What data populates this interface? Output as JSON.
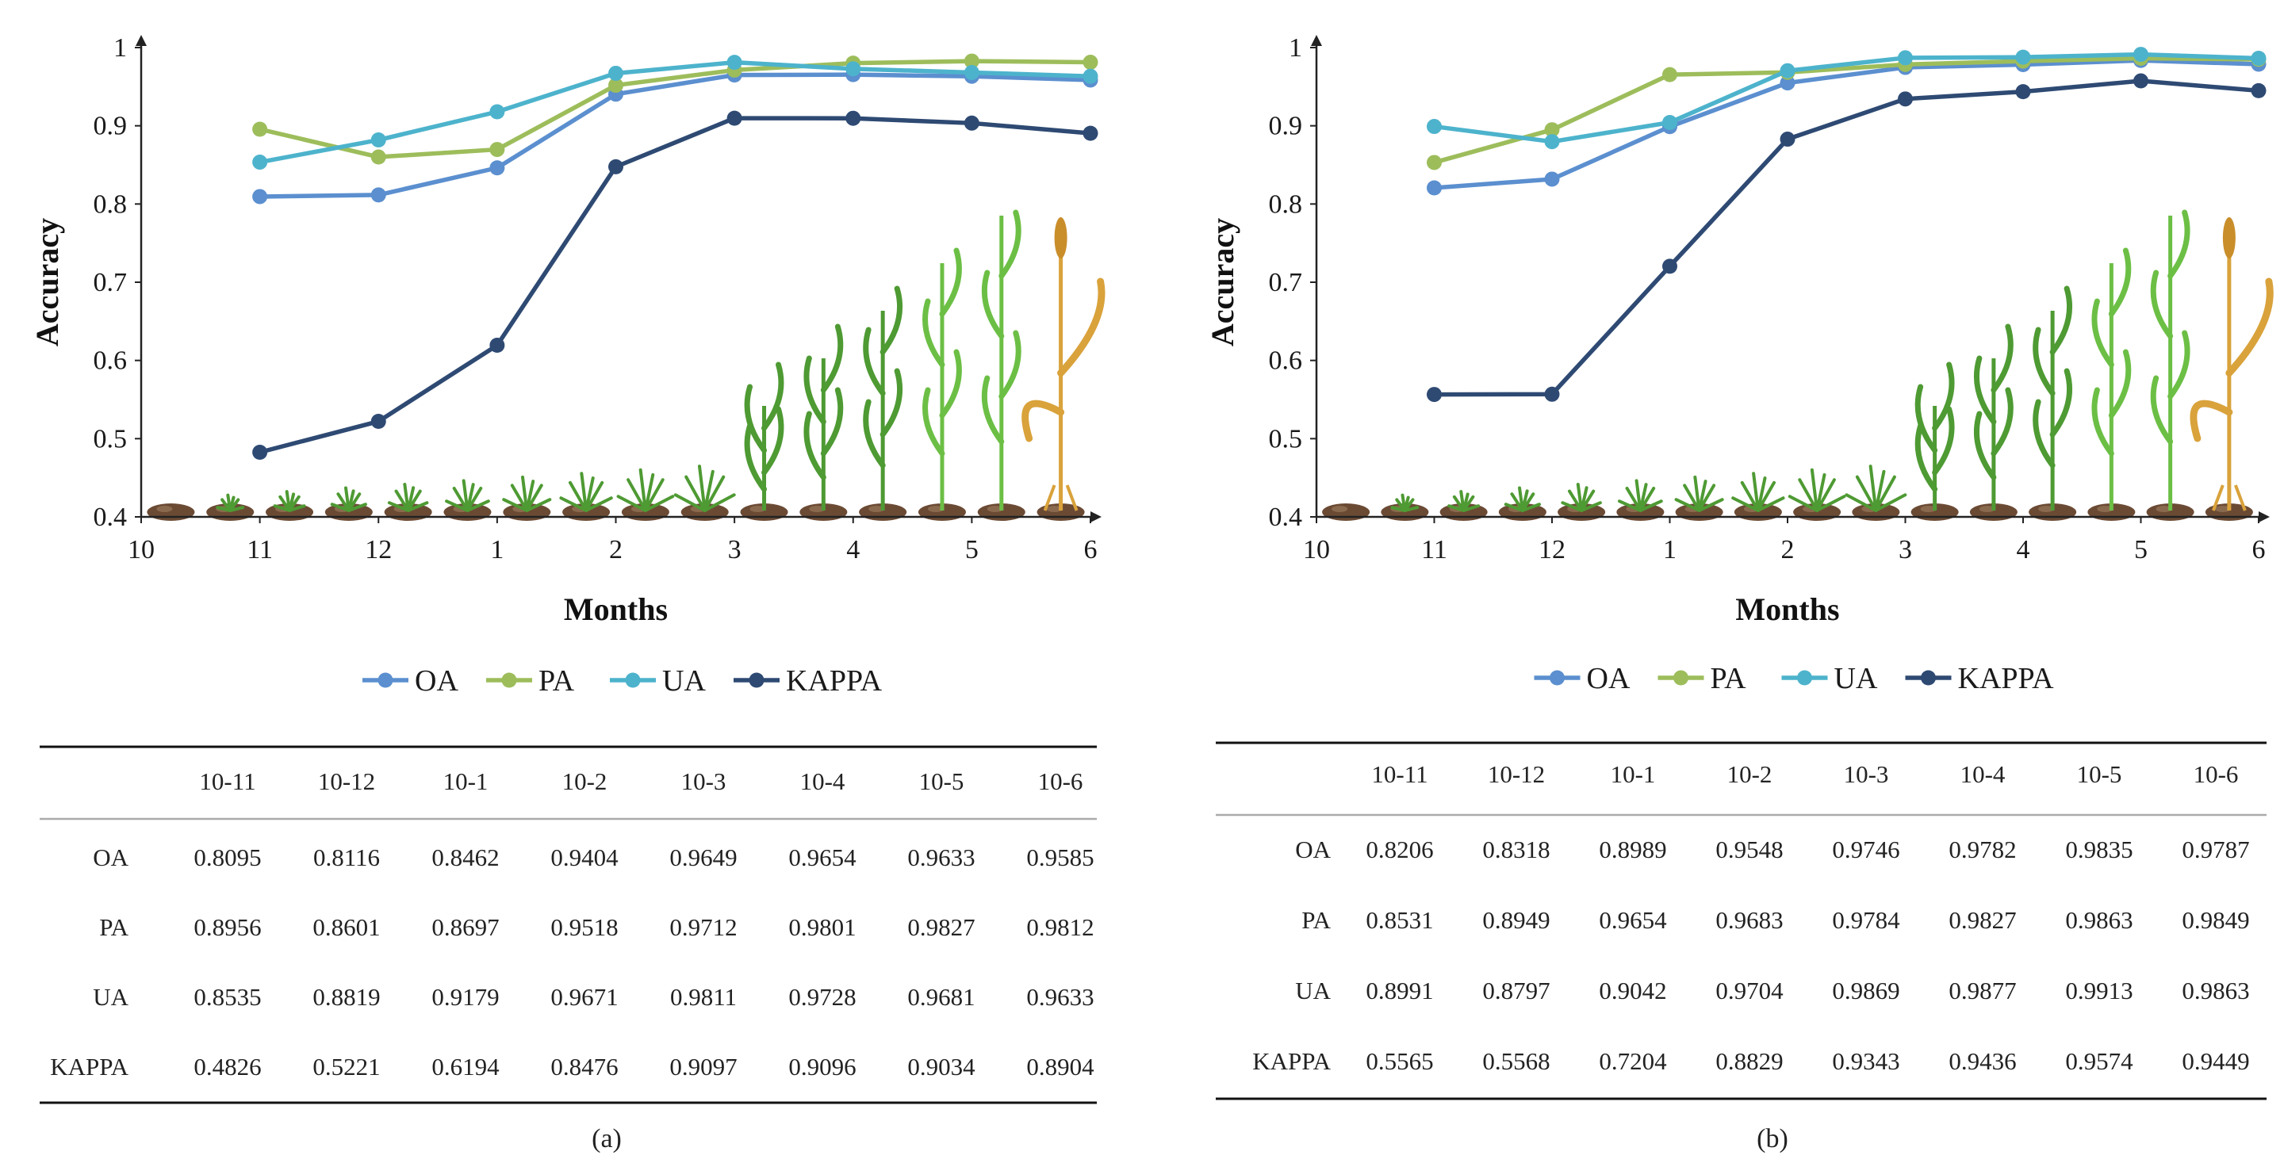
{
  "chart_data": [
    {
      "type": "line",
      "panel_label": "(a)",
      "xlabel": "Months",
      "ylabel": "Accuracy",
      "x_ticks": [
        "10",
        "11",
        "12",
        "1",
        "2",
        "3",
        "4",
        "5",
        "6"
      ],
      "y_ticks": [
        "0.4",
        "0.5",
        "0.6",
        "0.7",
        "0.8",
        "0.9",
        "1"
      ],
      "ylim": [
        0.4,
        1.0
      ],
      "series": [
        {
          "name": "OA",
          "color": "#5B8FCF",
          "values": [
            0.8095,
            0.8116,
            0.8462,
            0.9404,
            0.9649,
            0.9654,
            0.9633,
            0.9585
          ]
        },
        {
          "name": "PA",
          "color": "#9DBD5B",
          "values": [
            0.8956,
            0.8601,
            0.8697,
            0.9518,
            0.9712,
            0.9801,
            0.9827,
            0.9812
          ]
        },
        {
          "name": "UA",
          "color": "#4DB3CC",
          "values": [
            0.8535,
            0.8819,
            0.9179,
            0.9671,
            0.9811,
            0.9728,
            0.9681,
            0.9633
          ]
        },
        {
          "name": "KAPPA",
          "color": "#2E4A73",
          "values": [
            0.4826,
            0.5221,
            0.6194,
            0.8476,
            0.9097,
            0.9096,
            0.9034,
            0.8904
          ]
        }
      ],
      "table": {
        "columns": [
          "10-11",
          "10-12",
          "10-1",
          "10-2",
          "10-3",
          "10-4",
          "10-5",
          "10-6"
        ],
        "rows": [
          {
            "label": "OA",
            "values": [
              "0.8095",
              "0.8116",
              "0.8462",
              "0.9404",
              "0.9649",
              "0.9654",
              "0.9633",
              "0.9585"
            ]
          },
          {
            "label": "PA",
            "values": [
              "0.8956",
              "0.8601",
              "0.8697",
              "0.9518",
              "0.9712",
              "0.9801",
              "0.9827",
              "0.9812"
            ]
          },
          {
            "label": "UA",
            "values": [
              "0.8535",
              "0.8819",
              "0.9179",
              "0.9671",
              "0.9811",
              "0.9728",
              "0.9681",
              "0.9633"
            ]
          },
          {
            "label": "KAPPA",
            "values": [
              "0.4826",
              "0.5221",
              "0.6194",
              "0.8476",
              "0.9097",
              "0.9096",
              "0.9034",
              "0.8904"
            ]
          }
        ]
      }
    },
    {
      "type": "line",
      "panel_label": "(b)",
      "xlabel": "Months",
      "ylabel": "Accuracy",
      "x_ticks": [
        "10",
        "11",
        "12",
        "1",
        "2",
        "3",
        "4",
        "5",
        "6"
      ],
      "y_ticks": [
        "0.4",
        "0.5",
        "0.6",
        "0.7",
        "0.8",
        "0.9",
        "1"
      ],
      "ylim": [
        0.4,
        1.0
      ],
      "series": [
        {
          "name": "OA",
          "color": "#5B8FCF",
          "values": [
            0.8206,
            0.8318,
            0.8989,
            0.9548,
            0.9746,
            0.9782,
            0.9835,
            0.9787
          ]
        },
        {
          "name": "PA",
          "color": "#9DBD5B",
          "values": [
            0.8531,
            0.8949,
            0.9654,
            0.9683,
            0.9784,
            0.9827,
            0.9863,
            0.9849
          ]
        },
        {
          "name": "UA",
          "color": "#4DB3CC",
          "values": [
            0.8991,
            0.8797,
            0.9042,
            0.9704,
            0.9869,
            0.9877,
            0.9913,
            0.9863
          ]
        },
        {
          "name": "KAPPA",
          "color": "#2E4A73",
          "values": [
            0.5565,
            0.5568,
            0.7204,
            0.8829,
            0.9343,
            0.9436,
            0.9574,
            0.9449
          ]
        }
      ],
      "table": {
        "columns": [
          "10-11",
          "10-12",
          "10-1",
          "10-2",
          "10-3",
          "10-4",
          "10-5",
          "10-6"
        ],
        "rows": [
          {
            "label": "OA",
            "values": [
              "0.8206",
              "0.8318",
              "0.8989",
              "0.9548",
              "0.9746",
              "0.9782",
              "0.9835",
              "0.9787"
            ]
          },
          {
            "label": "PA",
            "values": [
              "0.8531",
              "0.8949",
              "0.9654",
              "0.9683",
              "0.9784",
              "0.9827",
              "0.9863",
              "0.9849"
            ]
          },
          {
            "label": "UA",
            "values": [
              "0.8991",
              "0.8797",
              "0.9042",
              "0.9704",
              "0.9869",
              "0.9877",
              "0.9913",
              "0.9863"
            ]
          },
          {
            "label": "KAPPA",
            "values": [
              "0.5565",
              "0.5568",
              "0.7204",
              "0.8829",
              "0.9343",
              "0.9436",
              "0.9574",
              "0.9449"
            ]
          }
        ]
      }
    }
  ]
}
